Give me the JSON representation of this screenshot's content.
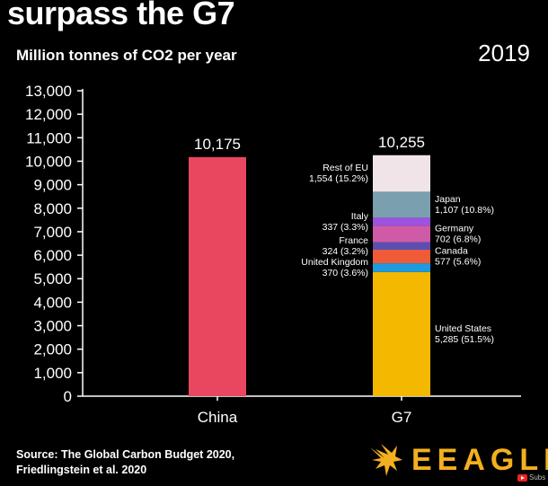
{
  "header": {
    "title": "surpass the G7",
    "subtitle": "Million tonnes of CO2 per year",
    "year": "2019"
  },
  "footer": {
    "source_line1": "Source: The Global Carbon Budget 2020,",
    "source_line2": "Friedlingstein et al. 2020",
    "brand": "EEAGLI",
    "subscribe": "Subs"
  },
  "chart_data": {
    "type": "bar",
    "stacked": true,
    "categories": [
      "China",
      "G7"
    ],
    "ylim": [
      0,
      13000
    ],
    "yticks": [
      "0",
      "1,000",
      "2,000",
      "3,000",
      "4,000",
      "5,000",
      "6,000",
      "7,000",
      "8,000",
      "9,000",
      "10,000",
      "11,000",
      "12,000",
      "13,000"
    ],
    "totals": [
      "10,175",
      "10,255"
    ],
    "bars": [
      {
        "category": "China",
        "segments": [
          {
            "value": 10175,
            "color": "#e8475f"
          }
        ]
      },
      {
        "category": "G7",
        "segments": [
          {
            "name": "United States",
            "value": 5285,
            "label": "5,285 (51.5%)",
            "color": "#f5b800",
            "side": "right"
          },
          {
            "name": "United Kingdom",
            "value": 370,
            "label": "370 (3.6%)",
            "color": "#1e9be0",
            "side": "left"
          },
          {
            "name": "Canada",
            "value": 577,
            "label": "577 (5.6%)",
            "color": "#ef5b38",
            "side": "right"
          },
          {
            "name": "France",
            "value": 324,
            "label": "324 (3.2%)",
            "color": "#5a4fb0",
            "side": "left"
          },
          {
            "name": "Germany",
            "value": 702,
            "label": "702 (6.8%)",
            "color": "#cf5ba7",
            "side": "right"
          },
          {
            "name": "Italy",
            "value": 337,
            "label": "337 (3.3%)",
            "color": "#9d52e0",
            "side": "left"
          },
          {
            "name": "Japan",
            "value": 1107,
            "label": "1,107 (10.8%)",
            "color": "#7a9faf",
            "side": "right"
          },
          {
            "name": "Rest of EU",
            "value": 1554,
            "label": "1,554 (15.2%)",
            "color": "#f0e4e8",
            "side": "left"
          }
        ]
      }
    ],
    "colors": {
      "axis": "#ffffff",
      "text": "#ffffff",
      "background": "#000000",
      "brand": "#f2b01e"
    }
  }
}
